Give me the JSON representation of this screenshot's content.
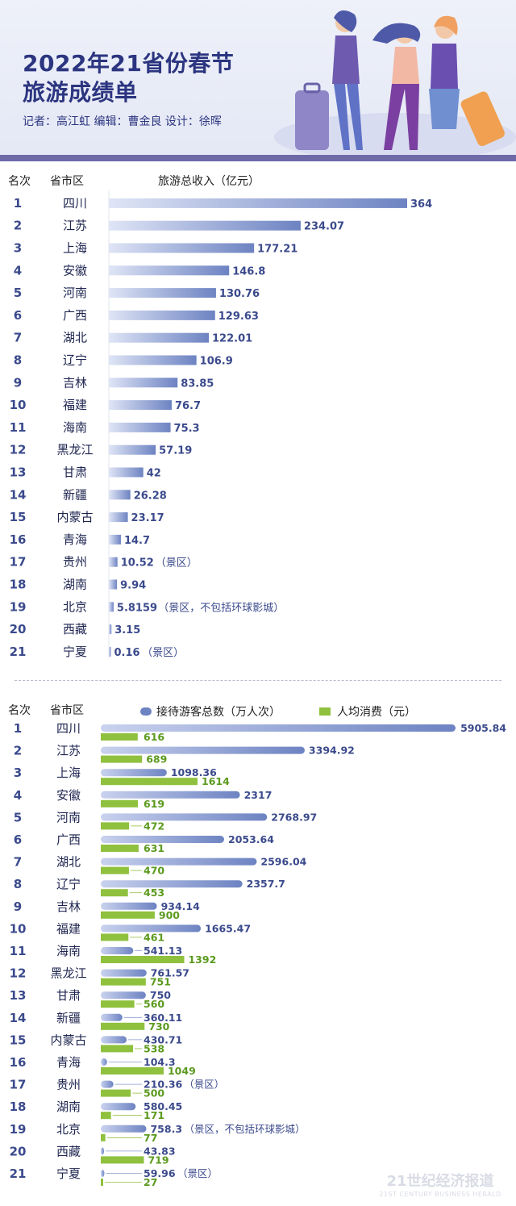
{
  "header": {
    "title_line1": "2022年21省份春节",
    "title_line2": "旅游成绩单",
    "credits": "记者：高江虹 编辑：曹金良 设计：徐晖"
  },
  "watermark": {
    "line1": "21世纪经济报道",
    "line2": "21ST CENTURY BUSINESS HERALD"
  },
  "colors": {
    "blue": "#6d83c2",
    "green": "#8fc13e",
    "title": "#2c3580",
    "label": "#3b4a8c"
  },
  "chart_data": [
    {
      "type": "bar",
      "col_rank": "名次",
      "col_region": "省市区",
      "title": "旅游总收入（亿元）",
      "ranks": [
        1,
        2,
        3,
        4,
        5,
        6,
        7,
        8,
        9,
        10,
        11,
        12,
        13,
        14,
        15,
        16,
        17,
        18,
        19,
        20,
        21
      ],
      "categories": [
        "四川",
        "江苏",
        "上海",
        "安徽",
        "河南",
        "广西",
        "湖北",
        "辽宁",
        "吉林",
        "福建",
        "海南",
        "黑龙江",
        "甘肃",
        "新疆",
        "内蒙古",
        "青海",
        "贵州",
        "湖南",
        "北京",
        "西藏",
        "宁夏"
      ],
      "values": [
        364,
        234.07,
        177.21,
        146.8,
        130.76,
        129.63,
        122.01,
        106.9,
        83.85,
        76.7,
        75.3,
        57.19,
        42,
        26.28,
        23.17,
        14.7,
        10.52,
        9.94,
        5.8159,
        3.15,
        0.16
      ],
      "labels": [
        "364",
        "234.07",
        "177.21",
        "146.8",
        "130.76",
        "129.63",
        "122.01",
        "106.9",
        "83.85",
        "76.7",
        "75.3",
        "57.19",
        "42",
        "26.28",
        "23.17",
        "14.7",
        "10.52",
        "9.94",
        "5.8159",
        "3.15",
        "0.16"
      ],
      "notes": [
        "",
        "",
        "",
        "",
        "",
        "",
        "",
        "",
        "",
        "",
        "",
        "",
        "",
        "",
        "",
        "",
        "（景区）",
        "",
        "（景区，不包括环球影城）",
        "",
        "（景区）"
      ]
    },
    {
      "type": "bar",
      "col_rank": "名次",
      "col_region": "省市区",
      "ranks": [
        1,
        2,
        3,
        4,
        5,
        6,
        7,
        8,
        9,
        10,
        11,
        12,
        13,
        14,
        15,
        16,
        17,
        18,
        19,
        20,
        21
      ],
      "categories": [
        "四川",
        "江苏",
        "上海",
        "安徽",
        "河南",
        "广西",
        "湖北",
        "辽宁",
        "吉林",
        "福建",
        "海南",
        "黑龙江",
        "甘肃",
        "新疆",
        "内蒙古",
        "青海",
        "贵州",
        "湖南",
        "北京",
        "西藏",
        "宁夏"
      ],
      "series": [
        {
          "name": "接待游客总数（万人次）",
          "color": "#6d83c2",
          "values": [
            5905.84,
            3394.92,
            1098.36,
            2317,
            2768.97,
            2053.64,
            2596.04,
            2357.7,
            934.14,
            1665.47,
            541.13,
            761.57,
            750,
            360.11,
            430.71,
            104.3,
            210.36,
            580.45,
            758.3,
            43.83,
            59.96
          ],
          "labels": [
            "5905.84",
            "3394.92",
            "1098.36",
            "2317",
            "2768.97",
            "2053.64",
            "2596.04",
            "2357.7",
            "934.14",
            "1665.47",
            "541.13",
            "761.57",
            "750",
            "360.11",
            "430.71",
            "104.3",
            "210.36",
            "580.45",
            "758.3",
            "43.83",
            "59.96"
          ],
          "notes": [
            "",
            "",
            "",
            "",
            "",
            "",
            "",
            "",
            "",
            "",
            "",
            "",
            "",
            "",
            "",
            "",
            "（景区）",
            "",
            "（景区，不包括环球影城）",
            "",
            "（景区）"
          ]
        },
        {
          "name": "人均消费（元）",
          "color": "#8fc13e",
          "values": [
            616,
            689,
            1614,
            619,
            472,
            631,
            470,
            453,
            900,
            461,
            1392,
            751,
            560,
            730,
            538,
            1049,
            500,
            171,
            77,
            719,
            27
          ],
          "labels": [
            "616",
            "689",
            "1614",
            "619",
            "472",
            "631",
            "470",
            "453",
            "900",
            "461",
            "1392",
            "751",
            "560",
            "730",
            "538",
            "1049",
            "500",
            "171",
            "77",
            "719",
            "27"
          ]
        }
      ]
    }
  ]
}
